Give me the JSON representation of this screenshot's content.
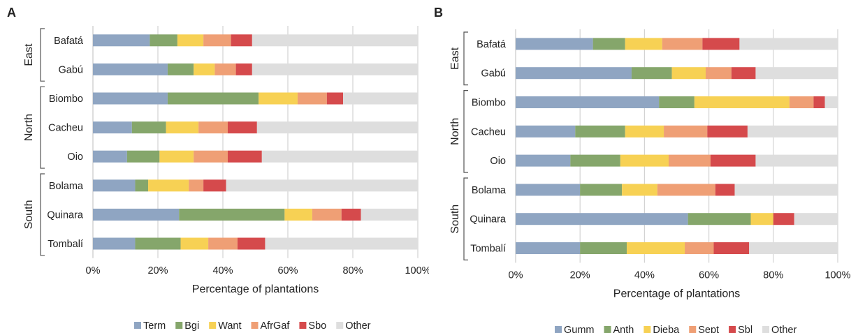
{
  "panels": [
    {
      "letter": "A"
    },
    {
      "letter": "B"
    }
  ],
  "chart_data": [
    {
      "type": "bar",
      "orientation": "horizontal",
      "stacked": true,
      "xlabel": "Percentage of plantations",
      "xlim": [
        0,
        100
      ],
      "x_ticks": [
        "0%",
        "20%",
        "40%",
        "60%",
        "80%",
        "100%"
      ],
      "grid": true,
      "legend_position": "bottom",
      "groups": [
        {
          "name": "East",
          "categories": [
            "Bafatá",
            "Gabú"
          ]
        },
        {
          "name": "North",
          "categories": [
            "Biombo",
            "Cacheu",
            "Oio"
          ]
        },
        {
          "name": "South",
          "categories": [
            "Bolama",
            "Quinara",
            "Tombalí"
          ]
        }
      ],
      "categories": [
        "Bafatá",
        "Gabú",
        "Biombo",
        "Cacheu",
        "Oio",
        "Bolama",
        "Quinara",
        "Tombalí"
      ],
      "series": [
        {
          "name": "Term",
          "color": "#8fa5c2",
          "values": [
            17.5,
            23,
            23,
            12,
            10.5,
            13,
            26.5,
            13
          ]
        },
        {
          "name": "Bgi",
          "color": "#85a66b",
          "values": [
            8.5,
            8,
            28,
            10.5,
            10,
            4,
            32.5,
            14
          ]
        },
        {
          "name": "Want",
          "color": "#f7d154",
          "values": [
            8,
            6.5,
            12,
            10,
            10.5,
            12.5,
            8.5,
            8.5
          ]
        },
        {
          "name": "AfrGaf",
          "color": "#ef9f75",
          "values": [
            8.5,
            6.5,
            9,
            9,
            10.5,
            4.5,
            9,
            9
          ]
        },
        {
          "name": "Sbo",
          "color": "#d54a4c",
          "values": [
            6.5,
            5,
            5,
            9,
            10.5,
            7,
            6,
            8.5
          ]
        },
        {
          "name": "Other",
          "color": "#dedede",
          "values": [
            51,
            51,
            23,
            49.5,
            48,
            59,
            17.5,
            47
          ]
        }
      ]
    },
    {
      "type": "bar",
      "orientation": "horizontal",
      "stacked": true,
      "xlabel": "Percentage of plantations",
      "xlim": [
        0,
        100
      ],
      "x_ticks": [
        "0%",
        "20%",
        "40%",
        "60%",
        "80%",
        "100%"
      ],
      "grid": true,
      "legend_position": "bottom",
      "groups": [
        {
          "name": "East",
          "categories": [
            "Bafatá",
            "Gabú"
          ]
        },
        {
          "name": "North",
          "categories": [
            "Biombo",
            "Cacheu",
            "Oio"
          ]
        },
        {
          "name": "South",
          "categories": [
            "Bolama",
            "Quinara",
            "Tombalí"
          ]
        }
      ],
      "categories": [
        "Bafatá",
        "Gabú",
        "Biombo",
        "Cacheu",
        "Oio",
        "Bolama",
        "Quinara",
        "Tombalí"
      ],
      "series": [
        {
          "name": "Gumm",
          "color": "#8fa5c2",
          "values": [
            24,
            36,
            44.5,
            18.5,
            17,
            20,
            53.5,
            20
          ]
        },
        {
          "name": "Anth",
          "color": "#85a66b",
          "values": [
            10,
            12.5,
            11,
            15.5,
            15.5,
            13,
            19.5,
            14.5
          ]
        },
        {
          "name": "Dieba",
          "color": "#f7d154",
          "values": [
            11.5,
            10.5,
            29.5,
            12,
            15,
            11,
            7,
            18
          ]
        },
        {
          "name": "Sept",
          "color": "#ef9f75",
          "values": [
            12.5,
            8,
            7.5,
            13.5,
            13,
            18,
            0,
            9
          ]
        },
        {
          "name": "Sbl",
          "color": "#d54a4c",
          "values": [
            11.5,
            7.5,
            3.5,
            12.5,
            14,
            6,
            6.5,
            11
          ]
        },
        {
          "name": "Other",
          "color": "#dedede",
          "values": [
            30.5,
            25.5,
            4,
            28,
            25.5,
            32,
            13.5,
            27.5
          ]
        }
      ]
    }
  ]
}
